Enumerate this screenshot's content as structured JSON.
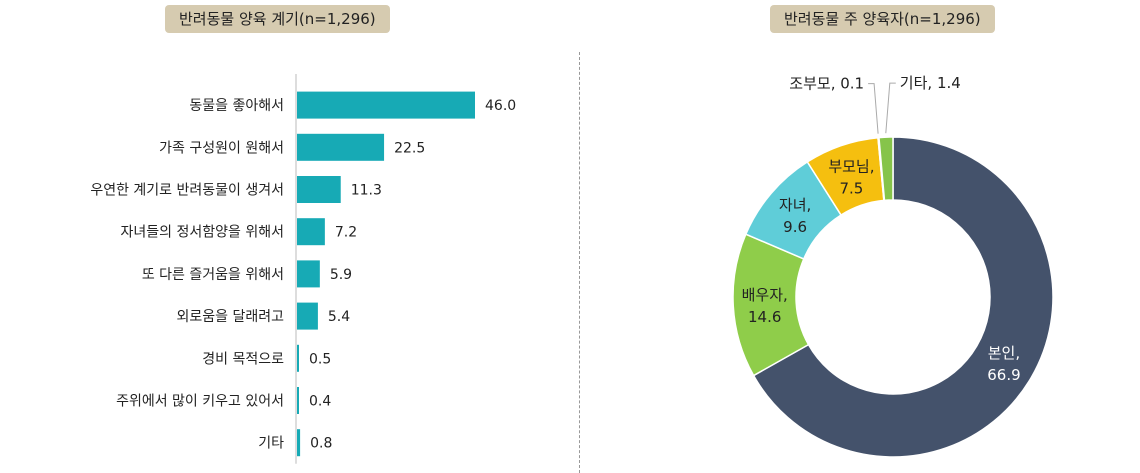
{
  "colors": {
    "title_bg": "#d6cbb0",
    "bar": "#17aab5",
    "axis": "#bbbbbb",
    "divider": "#999999"
  },
  "chart_data": [
    {
      "type": "bar",
      "orientation": "horizontal",
      "title": "반려동물 양육 계기(n=1,296)",
      "categories": [
        "동물을 좋아해서",
        "가족 구성원이 원해서",
        "우연한 계기로 반려동물이 생겨서",
        "자녀들의 정서함양을 위해서",
        "또 다른 즐거움을 위해서",
        "외로움을 달래려고",
        "경비 목적으로",
        "주위에서 많이 키우고 있어서",
        "기타"
      ],
      "values": [
        46.0,
        22.5,
        11.3,
        7.2,
        5.9,
        5.4,
        0.5,
        0.4,
        0.8
      ],
      "value_labels": [
        "46.0",
        "22.5",
        "11.3",
        "7.2",
        "5.9",
        "5.4",
        "0.5",
        "0.4",
        "0.8"
      ],
      "xlim": [
        0,
        50
      ],
      "grid": false,
      "legend": "none"
    },
    {
      "type": "pie",
      "style": "donut",
      "title": "반려동물 주 양육자(n=1,296)",
      "categories": [
        "본인",
        "배우자",
        "자녀",
        "부모님",
        "조부모",
        "기타"
      ],
      "values": [
        66.9,
        14.6,
        9.6,
        7.5,
        0.1,
        1.4
      ],
      "value_labels": [
        "66.9",
        "14.6",
        "9.6",
        "7.5",
        "0.1",
        "1.4"
      ],
      "colors": [
        "#44526b",
        "#8fcd4a",
        "#5fcdd8",
        "#f5bf0f",
        "#c4c4c4",
        "#86c44a"
      ],
      "label_colors": [
        "#ffffff",
        "#222222",
        "#222222",
        "#222222",
        "#222222",
        "#222222"
      ],
      "legend": "none"
    }
  ]
}
